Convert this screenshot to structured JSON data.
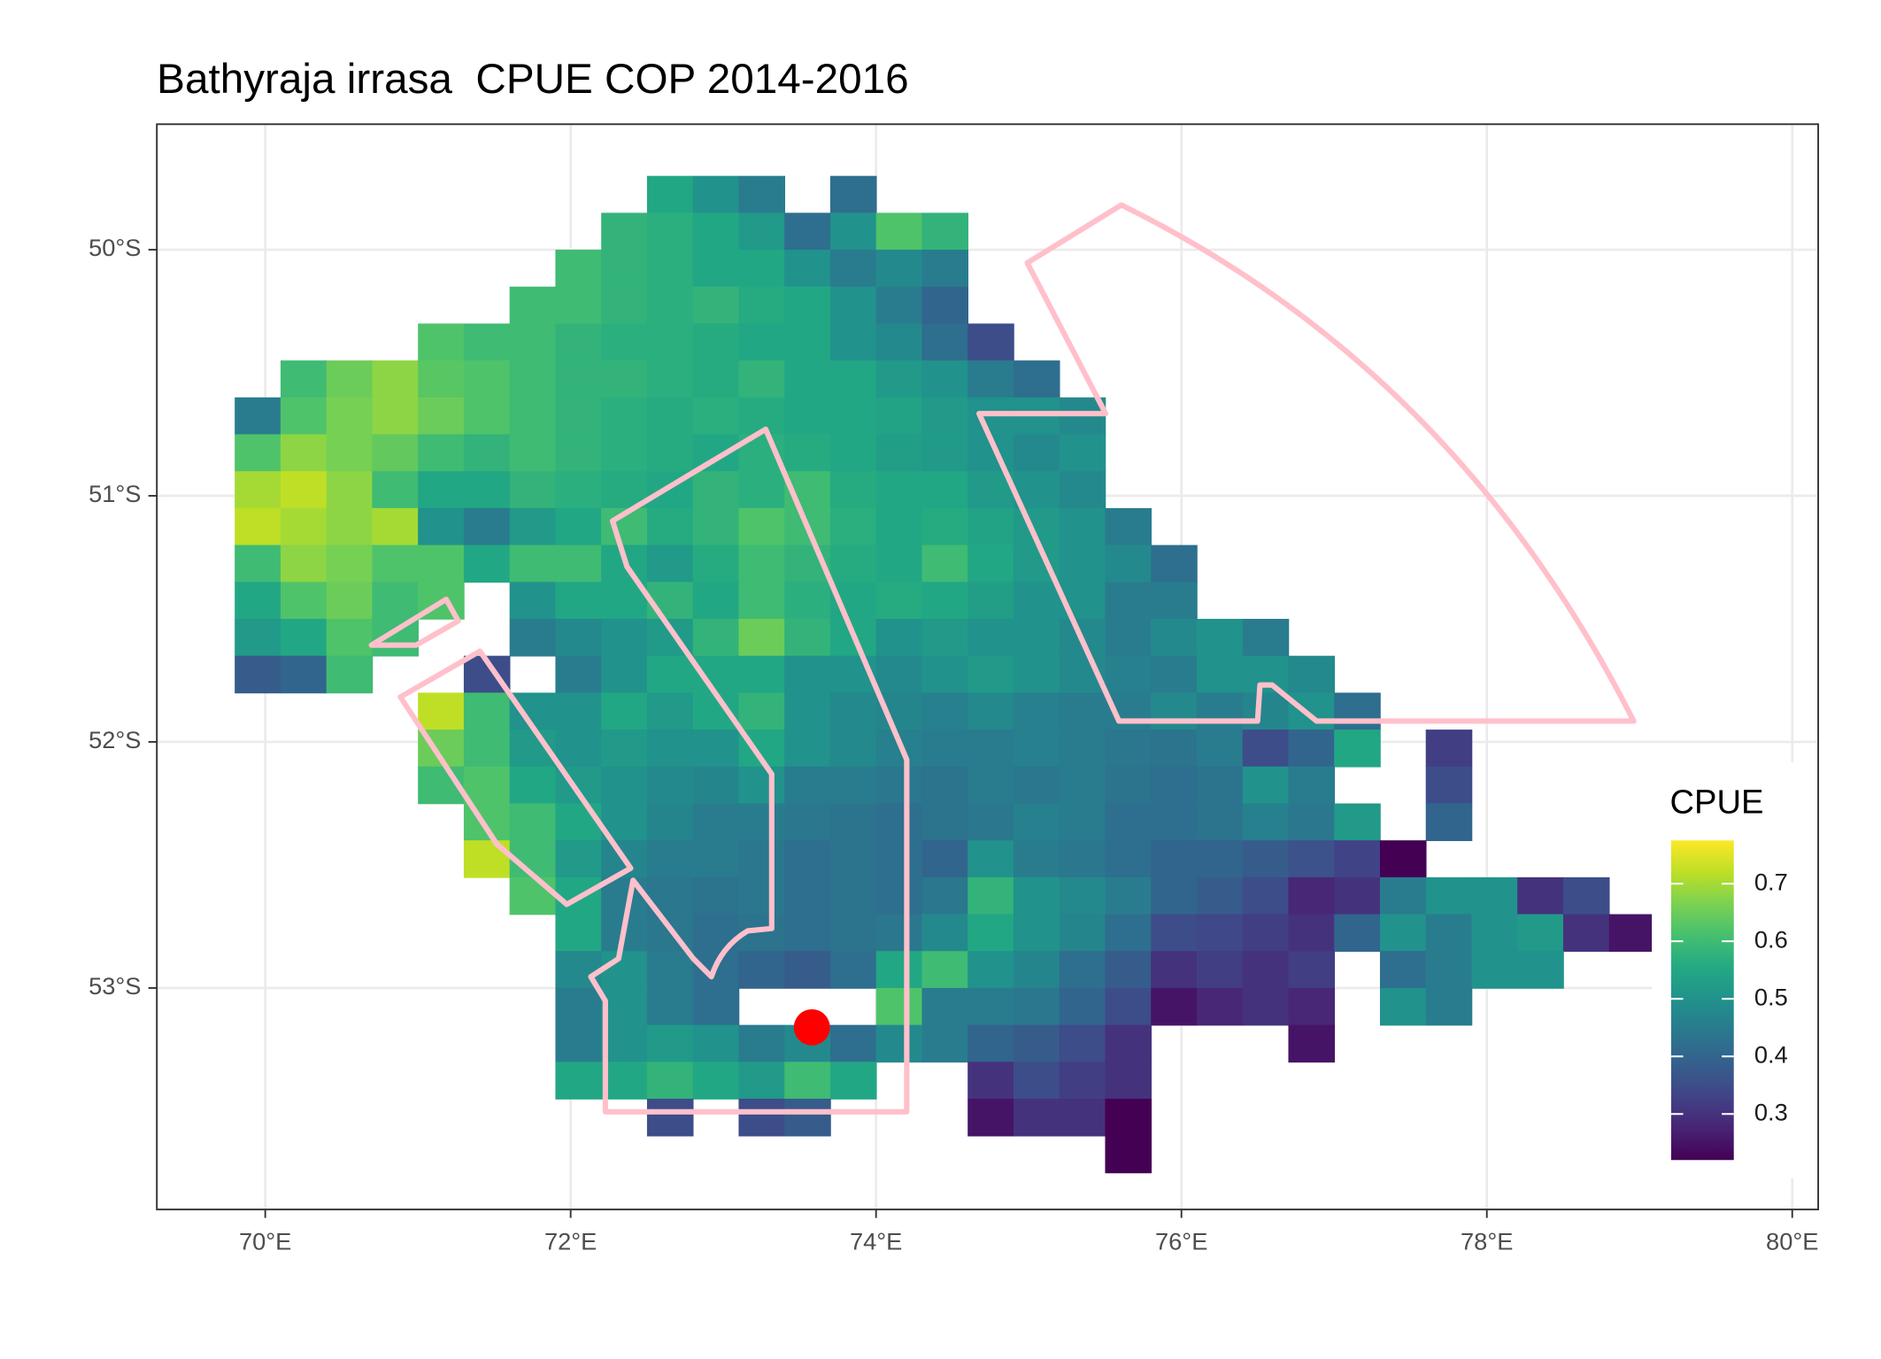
{
  "chart_data": {
    "type": "raster",
    "title": "Bathyraja irrasa  CPUE COP 2014-2016",
    "x": [
      69.95,
      70.25,
      70.55,
      70.85,
      71.15,
      71.45,
      71.75,
      72.05,
      72.35,
      72.65,
      72.95,
      73.25,
      73.55,
      73.85,
      74.15,
      74.45,
      74.75,
      75.05,
      75.35,
      75.65,
      75.95,
      76.25,
      76.55,
      76.85,
      77.15,
      77.45,
      77.75,
      78.05,
      78.35,
      78.65,
      78.95
    ],
    "y": [
      -49.775,
      -49.925,
      -50.075,
      -50.225,
      -50.375,
      -50.525,
      -50.675,
      -50.825,
      -50.975,
      -51.125,
      -51.275,
      -51.425,
      -51.575,
      -51.725,
      -51.875,
      -52.025,
      -52.175,
      -52.325,
      -52.475,
      -52.625,
      -52.775,
      -52.925,
      -53.075,
      -53.225,
      -53.375,
      -53.525,
      -53.675
    ],
    "values": [
      [
        null,
        null,
        null,
        null,
        null,
        null,
        null,
        null,
        null,
        0.55,
        0.5,
        0.45,
        null,
        0.42,
        null,
        null,
        null,
        null,
        null,
        null,
        null,
        null,
        null,
        null,
        null,
        null,
        null,
        null,
        null,
        null,
        null
      ],
      [
        null,
        null,
        null,
        null,
        null,
        null,
        null,
        null,
        0.58,
        0.57,
        0.55,
        0.52,
        0.42,
        0.5,
        0.62,
        0.58,
        null,
        null,
        null,
        null,
        null,
        null,
        null,
        null,
        null,
        null,
        null,
        null,
        null,
        null,
        null
      ],
      [
        null,
        null,
        null,
        null,
        null,
        null,
        null,
        0.6,
        0.58,
        0.57,
        0.55,
        0.55,
        0.5,
        0.45,
        0.48,
        0.45,
        null,
        null,
        null,
        null,
        null,
        null,
        null,
        null,
        null,
        null,
        null,
        null,
        null,
        null,
        null
      ],
      [
        null,
        null,
        null,
        null,
        null,
        null,
        0.6,
        0.6,
        0.58,
        0.57,
        0.58,
        0.56,
        0.55,
        0.5,
        0.45,
        0.4,
        null,
        null,
        null,
        null,
        null,
        null,
        null,
        null,
        null,
        null,
        null,
        null,
        null,
        null,
        null
      ],
      [
        null,
        null,
        null,
        null,
        0.62,
        0.6,
        0.6,
        0.58,
        0.57,
        0.57,
        0.56,
        0.55,
        0.55,
        0.5,
        0.48,
        0.42,
        0.35,
        null,
        null,
        null,
        null,
        null,
        null,
        null,
        null,
        null,
        null,
        null,
        null,
        null,
        null
      ],
      [
        null,
        0.6,
        0.65,
        0.68,
        0.63,
        0.62,
        0.6,
        0.58,
        0.58,
        0.57,
        0.56,
        0.58,
        0.55,
        0.55,
        0.52,
        0.5,
        0.45,
        0.42,
        null,
        null,
        null,
        null,
        null,
        null,
        null,
        null,
        null,
        null,
        null,
        null,
        null
      ],
      [
        0.45,
        0.62,
        0.66,
        0.68,
        0.65,
        0.62,
        0.6,
        0.58,
        0.57,
        0.56,
        0.57,
        0.56,
        0.55,
        0.55,
        0.54,
        0.52,
        0.5,
        0.5,
        0.48,
        null,
        null,
        null,
        null,
        null,
        null,
        null,
        null,
        null,
        null,
        null,
        null
      ],
      [
        0.62,
        0.68,
        0.66,
        0.64,
        0.6,
        0.58,
        0.6,
        0.58,
        0.57,
        0.56,
        0.55,
        0.57,
        0.56,
        0.55,
        0.53,
        0.52,
        0.5,
        0.48,
        0.5,
        null,
        null,
        null,
        null,
        null,
        null,
        null,
        null,
        null,
        null,
        null,
        null
      ],
      [
        0.7,
        0.72,
        0.68,
        0.6,
        0.55,
        0.55,
        0.58,
        0.57,
        0.56,
        0.55,
        0.58,
        0.57,
        0.6,
        0.56,
        0.55,
        0.55,
        0.52,
        0.5,
        0.48,
        null,
        null,
        null,
        null,
        null,
        null,
        null,
        null,
        null,
        null,
        null,
        null
      ],
      [
        0.72,
        0.7,
        0.68,
        0.7,
        0.5,
        0.45,
        0.52,
        0.55,
        0.6,
        0.56,
        0.58,
        0.62,
        0.6,
        0.57,
        0.55,
        0.56,
        0.54,
        0.52,
        0.5,
        0.45,
        null,
        null,
        null,
        null,
        null,
        null,
        null,
        null,
        null,
        null,
        null
      ],
      [
        0.6,
        0.68,
        0.66,
        0.62,
        0.62,
        0.55,
        0.6,
        0.6,
        0.55,
        0.52,
        0.56,
        0.6,
        0.58,
        0.56,
        0.55,
        0.6,
        0.55,
        0.52,
        0.5,
        0.48,
        0.42,
        null,
        null,
        null,
        null,
        null,
        null,
        null,
        null,
        null,
        null
      ],
      [
        0.55,
        0.62,
        0.65,
        0.6,
        0.62,
        null,
        0.5,
        0.55,
        0.55,
        0.58,
        0.55,
        0.6,
        0.57,
        0.55,
        0.56,
        0.55,
        0.53,
        0.5,
        0.5,
        0.45,
        0.45,
        null,
        null,
        null,
        null,
        null,
        null,
        null,
        null,
        null,
        null
      ],
      [
        0.52,
        0.55,
        0.62,
        0.6,
        null,
        null,
        0.45,
        0.48,
        0.5,
        0.52,
        0.58,
        0.65,
        0.58,
        0.55,
        0.5,
        0.52,
        0.5,
        0.5,
        0.48,
        0.45,
        0.48,
        0.5,
        0.45,
        null,
        null,
        null,
        null,
        null,
        null,
        null,
        null
      ],
      [
        0.38,
        0.4,
        0.6,
        null,
        null,
        0.35,
        null,
        0.45,
        0.5,
        0.55,
        0.55,
        0.55,
        0.5,
        0.5,
        0.48,
        0.5,
        0.52,
        0.5,
        0.48,
        0.46,
        0.45,
        0.5,
        0.5,
        0.48,
        null,
        null,
        null,
        null,
        null,
        null,
        null
      ],
      [
        null,
        null,
        null,
        null,
        0.72,
        0.6,
        0.5,
        0.5,
        0.55,
        0.52,
        0.55,
        0.58,
        0.5,
        0.48,
        0.47,
        0.46,
        0.48,
        0.46,
        0.45,
        0.45,
        0.48,
        0.45,
        0.47,
        0.5,
        0.42,
        null,
        null,
        null,
        null,
        null,
        null
      ],
      [
        null,
        null,
        null,
        null,
        0.65,
        0.6,
        0.52,
        0.5,
        0.52,
        0.5,
        0.5,
        0.55,
        0.5,
        0.48,
        0.46,
        0.45,
        0.45,
        0.46,
        0.45,
        0.44,
        0.43,
        0.45,
        0.35,
        0.4,
        0.55,
        null,
        0.32,
        null,
        null,
        null,
        null
      ],
      [
        null,
        null,
        null,
        null,
        0.6,
        0.62,
        0.55,
        0.52,
        0.5,
        0.48,
        0.47,
        0.5,
        0.45,
        0.45,
        0.44,
        0.43,
        0.45,
        0.44,
        0.45,
        0.43,
        0.42,
        0.43,
        0.5,
        0.45,
        null,
        null,
        0.35,
        null,
        null,
        null,
        null
      ],
      [
        null,
        null,
        null,
        null,
        null,
        0.62,
        0.6,
        0.55,
        0.5,
        0.47,
        0.45,
        0.45,
        0.44,
        0.43,
        0.42,
        0.43,
        0.44,
        0.46,
        0.45,
        0.42,
        0.42,
        0.43,
        0.46,
        0.44,
        0.52,
        null,
        0.4,
        null,
        null,
        null,
        null
      ],
      [
        null,
        null,
        null,
        null,
        null,
        0.72,
        0.6,
        0.52,
        0.47,
        0.45,
        0.45,
        0.44,
        0.42,
        0.43,
        0.42,
        0.4,
        0.5,
        0.45,
        0.44,
        0.42,
        0.4,
        0.4,
        0.38,
        0.36,
        0.33,
        0.22,
        null,
        null,
        null,
        null,
        null
      ],
      [
        null,
        null,
        null,
        null,
        null,
        null,
        0.62,
        0.55,
        0.45,
        0.44,
        0.43,
        0.44,
        0.42,
        0.43,
        0.42,
        0.44,
        0.58,
        0.5,
        0.48,
        0.45,
        0.4,
        0.38,
        0.35,
        0.28,
        0.3,
        0.45,
        0.5,
        0.5,
        0.3,
        0.35,
        null
      ],
      [
        null,
        null,
        null,
        null,
        null,
        null,
        null,
        0.55,
        0.45,
        0.44,
        0.42,
        0.43,
        0.42,
        0.43,
        0.44,
        0.48,
        0.55,
        0.5,
        0.47,
        0.42,
        0.35,
        0.34,
        0.32,
        0.3,
        0.4,
        0.5,
        0.45,
        0.5,
        0.52,
        0.3,
        0.25
      ],
      [
        null,
        null,
        null,
        null,
        null,
        null,
        null,
        0.48,
        0.5,
        0.45,
        0.42,
        0.4,
        0.38,
        0.42,
        0.55,
        0.6,
        0.5,
        0.47,
        0.42,
        0.38,
        0.3,
        0.32,
        0.3,
        0.32,
        null,
        0.42,
        0.45,
        0.5,
        0.5,
        null,
        null
      ],
      [
        null,
        null,
        null,
        null,
        null,
        null,
        null,
        0.45,
        0.5,
        0.45,
        0.42,
        null,
        null,
        null,
        0.62,
        0.45,
        0.45,
        0.44,
        0.4,
        0.35,
        0.25,
        0.28,
        0.3,
        0.28,
        null,
        0.5,
        0.45,
        null,
        null,
        null,
        null
      ],
      [
        null,
        null,
        null,
        null,
        null,
        null,
        null,
        0.45,
        0.5,
        0.52,
        0.5,
        0.45,
        0.48,
        0.42,
        0.48,
        0.45,
        0.4,
        0.38,
        0.35,
        0.3,
        null,
        null,
        null,
        0.25,
        null,
        null,
        null,
        null,
        null,
        null,
        null
      ],
      [
        null,
        null,
        null,
        null,
        null,
        null,
        null,
        0.55,
        0.55,
        0.58,
        0.55,
        0.52,
        0.6,
        0.55,
        null,
        null,
        0.3,
        0.35,
        0.32,
        0.3,
        null,
        null,
        null,
        null,
        null,
        null,
        null,
        null,
        null,
        null,
        null
      ],
      [
        null,
        null,
        null,
        null,
        null,
        null,
        null,
        null,
        null,
        0.35,
        null,
        0.35,
        0.38,
        null,
        null,
        null,
        0.25,
        0.3,
        0.3,
        0.22,
        null,
        null,
        null,
        null,
        null,
        null,
        null,
        null,
        null,
        null,
        null
      ],
      [
        null,
        null,
        null,
        null,
        null,
        null,
        null,
        null,
        null,
        null,
        null,
        null,
        null,
        null,
        null,
        null,
        null,
        null,
        null,
        0.22,
        null,
        null,
        null,
        null,
        null,
        null,
        null,
        null,
        null,
        null,
        null
      ]
    ],
    "colorscale": "viridis",
    "clim": [
      0.22,
      0.775
    ],
    "xlim": [
      69.29,
      80.17
    ],
    "ylim": [
      -53.9,
      -49.49
    ],
    "xticks": [
      {
        "value": 70,
        "label": "70°E"
      },
      {
        "value": 72,
        "label": "72°E"
      },
      {
        "value": 74,
        "label": "74°E"
      },
      {
        "value": 76,
        "label": "76°E"
      },
      {
        "value": 78,
        "label": "78°E"
      },
      {
        "value": 80,
        "label": "80°E"
      }
    ],
    "yticks": [
      {
        "value": -50,
        "label": "50°S"
      },
      {
        "value": -51,
        "label": "51°S"
      },
      {
        "value": -52,
        "label": "52°S"
      },
      {
        "value": -53,
        "label": "53°S"
      }
    ],
    "grid": true,
    "outline_color": "#ffc0cb",
    "points": {
      "x": [
        73.58
      ],
      "y": [
        -53.16
      ],
      "color": "#ff0000"
    },
    "legend": {
      "title": "CPUE",
      "position": "right",
      "ticks": [
        0.3,
        0.4,
        0.5,
        0.6,
        0.7
      ]
    }
  }
}
